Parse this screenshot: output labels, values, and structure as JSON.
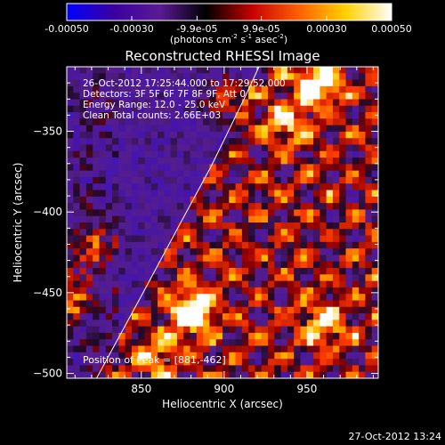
{
  "chart_data": {
    "type": "heatmap",
    "title": "Reconstructed RHESSI Image",
    "xlabel": "Heliocentric X (arcsec)",
    "ylabel": "Heliocentric Y (arcsec)",
    "xlim": [
      805,
      993
    ],
    "ylim": [
      -503,
      -310
    ],
    "x_ticks": [
      850,
      900,
      950
    ],
    "y_ticks": [
      -500,
      -450,
      -400,
      -350
    ],
    "colorbar": {
      "range": [
        -0.0005,
        0.0005
      ],
      "ticks": [
        -0.0005,
        -0.0003,
        -9.9e-05,
        9.9e-05,
        0.0003,
        0.0005
      ],
      "tick_labels": [
        "-0.00050",
        "-0.00030",
        "-9.9e-05",
        "9.9e-05",
        "0.00030",
        "0.00050"
      ],
      "colors": [
        "#0000ff",
        "#3a00a0",
        "#5a1a96",
        "#000000",
        "#c80000",
        "#ff6000",
        "#ffd000",
        "#ffffff"
      ]
    },
    "unit_parts": {
      "prefix": "(photons cm",
      "exp1": "-2",
      "mid1": " s",
      "exp2": "-1",
      "mid2": " asec",
      "exp3": "-2",
      "suffix": ")"
    },
    "info_lines": [
      "26-Oct-2012 17:25:44.000 to 17:29:52.000",
      "Detectors: 3F 5F 6F 7F 8F 9F, Att 0",
      "Energy Range: 12.0 - 25.0 keV",
      "Clean     Total counts: 2.66E+03"
    ],
    "peak_label": "Position of Peak = [881,-462]",
    "peak": [
      881,
      -462
    ],
    "limb_curve": [
      [
        823,
        -503
      ],
      [
        850,
        -452
      ],
      [
        872,
        -410
      ],
      [
        892,
        -372
      ],
      [
        912,
        -330
      ],
      [
        921,
        -310
      ]
    ],
    "bright_sources": [
      {
        "x": 881,
        "y": -462,
        "strength": 1.0
      },
      {
        "x": 957,
        "y": -320,
        "strength": 0.9
      },
      {
        "x": 806,
        "y": -455,
        "strength": 0.7
      },
      {
        "x": 820,
        "y": -420,
        "strength": 0.55
      },
      {
        "x": 900,
        "y": -330,
        "strength": 0.5
      },
      {
        "x": 960,
        "y": -470,
        "strength": 0.6
      },
      {
        "x": 938,
        "y": -345,
        "strength": 0.55
      },
      {
        "x": 860,
        "y": -490,
        "strength": 0.5
      }
    ]
  },
  "footer_date": "27-Oct-2012 13:24"
}
